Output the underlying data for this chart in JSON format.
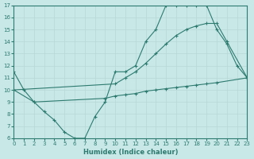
{
  "xlabel": "Humidex (Indice chaleur)",
  "background_color": "#c8e8e8",
  "line_color": "#2d7a6e",
  "xlim": [
    0,
    23
  ],
  "ylim": [
    6,
    17
  ],
  "xticks": [
    0,
    1,
    2,
    3,
    4,
    5,
    6,
    7,
    8,
    9,
    10,
    11,
    12,
    13,
    14,
    15,
    16,
    17,
    18,
    19,
    20,
    21,
    22,
    23
  ],
  "yticks": [
    6,
    7,
    8,
    9,
    10,
    11,
    12,
    13,
    14,
    15,
    16,
    17
  ],
  "line1_x": [
    0,
    1,
    2,
    3,
    4,
    5,
    6,
    7,
    8,
    9,
    10,
    11,
    12,
    13,
    14,
    15,
    16,
    17,
    18,
    19,
    20,
    21,
    22,
    23
  ],
  "line1_y": [
    11.5,
    10.0,
    9.0,
    8.2,
    7.5,
    6.5,
    6.0,
    6.0,
    7.8,
    9.0,
    11.5,
    11.5,
    12.0,
    14.0,
    15.0,
    17.0,
    17.0,
    17.0,
    17.0,
    17.0,
    15.0,
    13.8,
    12.0,
    11.0
  ],
  "line2_x": [
    0,
    10,
    11,
    12,
    13,
    14,
    15,
    16,
    17,
    18,
    19,
    20,
    21,
    23
  ],
  "line2_y": [
    10.0,
    10.5,
    11.0,
    11.5,
    12.2,
    13.0,
    13.8,
    14.5,
    15.0,
    15.3,
    15.5,
    15.5,
    14.0,
    11.0
  ],
  "line3_x": [
    0,
    2,
    9,
    10,
    11,
    12,
    13,
    14,
    15,
    16,
    17,
    18,
    19,
    20,
    23
  ],
  "line3_y": [
    10.0,
    9.0,
    9.3,
    9.5,
    9.6,
    9.7,
    9.9,
    10.0,
    10.1,
    10.2,
    10.3,
    10.4,
    10.5,
    10.6,
    11.0
  ]
}
